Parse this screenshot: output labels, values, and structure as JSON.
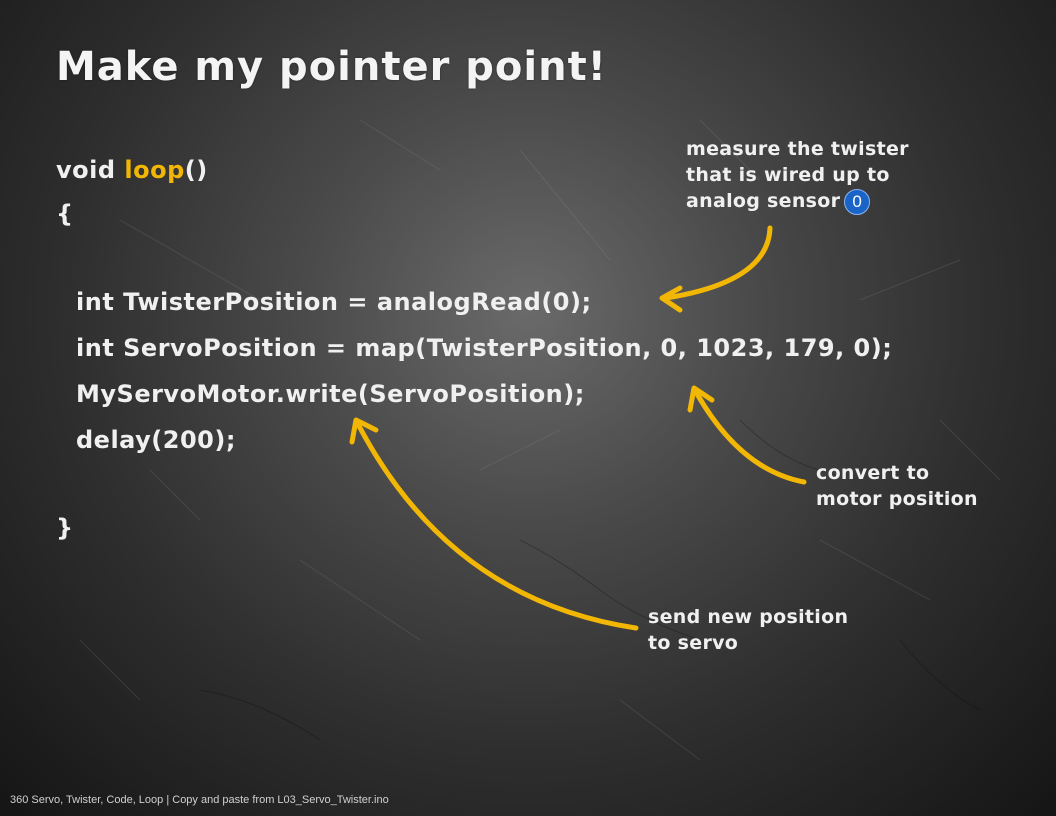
{
  "slide": {
    "title": "Make my pointer point!"
  },
  "code": {
    "line1_pre": "void ",
    "line1_fn": "loop",
    "line1_post": "()",
    "open_brace": "{",
    "line3": "int TwisterPosition = analogRead(0);",
    "line4": "int ServoPosition = map(TwisterPosition, 0, 1023, 179, 0);",
    "line5": "MyServoMotor.write(ServoPosition);",
    "line6": "delay(200);",
    "close_brace": "}"
  },
  "annotations": {
    "measure": {
      "line1": "measure the twister",
      "line2": "that is wired up to",
      "line3": "analog sensor",
      "badge": "0"
    },
    "convert": {
      "line1": "convert to",
      "line2": "motor position"
    },
    "send": {
      "line1": "send new position",
      "line2": "to servo"
    }
  },
  "footer": {
    "text": "360 Servo, Twister, Code, Loop | Copy and paste from L03_Servo_Twister.ino"
  },
  "colors": {
    "accent": "#f2b705",
    "badge": "#1a64c8",
    "chalk": "#f0f0f0",
    "board": "#3a3a3a"
  },
  "icons": {
    "arrow": "curved-arrow-icon"
  }
}
